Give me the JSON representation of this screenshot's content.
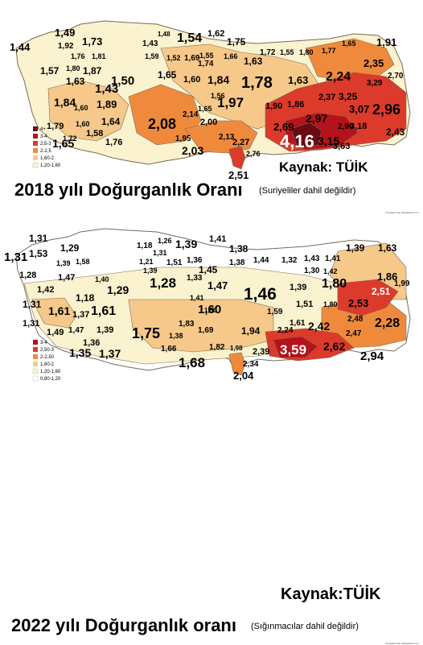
{
  "maps": [
    {
      "title": "2018 yılı Doğurganlık Oranı",
      "subtitle": "(Suriyeliler dahil değildir)",
      "source": "Kaynak: TÜİK",
      "credit": "Chasabel Gök Hattigalbuk.com",
      "legend": [
        "4+",
        "3-4",
        "2,5-3",
        "2-2,5",
        "1,60-2",
        "1,20-1,60"
      ],
      "values": [
        "1,44",
        "1,49",
        "1,92",
        "1,73",
        "1,76",
        "1,81",
        "1,57",
        "1,80",
        "1,87",
        "1,63",
        "1,43",
        "1,84",
        "1,60",
        "1,89",
        "1,50",
        "1,79",
        "1,60",
        "1,72",
        "1,65",
        "1,58",
        "1,64",
        "1,76",
        "2,08",
        "1,43",
        "1,48",
        "1,54",
        "1,62",
        "1,75",
        "1,59",
        "1,52",
        "1,55",
        "1,69",
        "1,66",
        "1,65",
        "1,60",
        "1,74",
        "1,84",
        "1,63",
        "1,78",
        "1,72",
        "1,55",
        "1,80",
        "1,65",
        "1,91",
        "1,77",
        "2,35",
        "2,24",
        "3,29",
        "2,70",
        "1,63",
        "1,97",
        "1,90",
        "1,86",
        "2,37",
        "3,25",
        "3,07",
        "2,96",
        "2,14",
        "2,00",
        "1,65",
        "2,97",
        "2,90",
        "3,18",
        "2,43",
        "2,69",
        "1,95",
        "2,03",
        "2,13",
        "2,27",
        "4,16",
        "3,15",
        "3,63",
        "2,76",
        "2,51",
        "1,56"
      ]
    },
    {
      "title": "2022 yılı Doğurganlık oranı",
      "subtitle": "(Sığınmacılar dahil değildir)",
      "source": "Kaynak:TÜİK",
      "credit": "Chasabel Gök Hattigalbuk.com",
      "legend": [
        "3-4",
        "2,50-3",
        "2-2,50",
        "1,60-2",
        "1,20-1,60",
        "0,80-1,20"
      ],
      "values": [
        "1,31",
        "1,31",
        "1,29",
        "1,53",
        "1,39",
        "1,58",
        "1,18",
        "1,26",
        "1,39",
        "1,41",
        "1,63",
        "1,39",
        "1,38",
        "1,44",
        "1,32",
        "1,43",
        "1,41",
        "1,31",
        "1,28",
        "1,47",
        "1,40",
        "1,21",
        "1,51",
        "1,36",
        "1,31",
        "1,39",
        "1,45",
        "1,38",
        "1,30",
        "1,42",
        "1,46",
        "1,86",
        "1,99",
        "1,42",
        "1,18",
        "1,29",
        "1,28",
        "1,33",
        "1,47",
        "1,39",
        "1,80",
        "2,51",
        "1,61",
        "1,37",
        "1,61",
        "1,60",
        "1,41",
        "1,59",
        "1,51",
        "1,80",
        "2,53",
        "1,31",
        "1,49",
        "1,47",
        "1,39",
        "1,36",
        "1,75",
        "1,83",
        "1,69",
        "1,94",
        "2,42",
        "2,48",
        "2,28",
        "1,35",
        "1,37",
        "1,66",
        "1,82",
        "1,98",
        "2,39",
        "3,59",
        "2,62",
        "2,47",
        "2,94",
        "1,68",
        "2,04",
        "2,34",
        "1,38",
        "1,50",
        "2,24",
        "1,61"
      ]
    }
  ],
  "colors": {
    "c_4plus": "#6b0a13",
    "c_3_4": "#b5121b",
    "c_25_3": "#dc3a2a",
    "c_2_25": "#ef8a3c",
    "c_160_2": "#f6c98a",
    "c_120_160": "#fbf2cf",
    "c_080_120": "#ffffff",
    "border": "#7a6a55"
  }
}
